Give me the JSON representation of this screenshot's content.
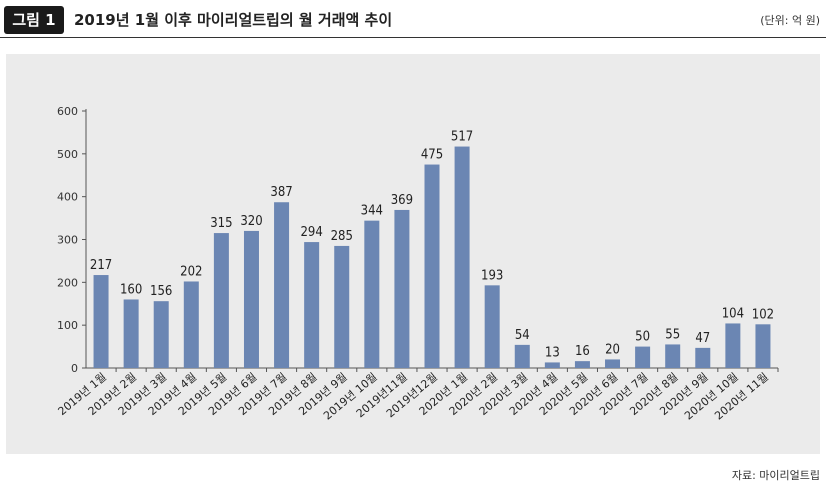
{
  "header": {
    "badge": "그림 1",
    "title": "2019년 1월 이후 마이리얼트립의 월 거래액 추이",
    "unit": "(단위: 억 원)"
  },
  "footer": {
    "source": "자료: 마이리얼트립"
  },
  "colors": {
    "bar": "#6b86b3",
    "panel": "#ebebeb",
    "badge": "#1a1a1a"
  },
  "chart_data": {
    "type": "bar",
    "title": "2019년 1월 이후 마이리얼트립의 월 거래액 추이",
    "xlabel": "",
    "ylabel": "",
    "ylim": [
      0,
      600
    ],
    "yticks": [
      0,
      100,
      200,
      300,
      400,
      500,
      600
    ],
    "grid": false,
    "categories": [
      "2019년 1월",
      "2019년 2월",
      "2019년 3월",
      "2019년 4월",
      "2019년 5월",
      "2019년 6월",
      "2019년 7월",
      "2019년 8월",
      "2019년 9월",
      "2019년 10월",
      "2019년11월",
      "2019년12월",
      "2020년 1월",
      "2020년 2월",
      "2020년 3월",
      "2020년 4월",
      "2020년 5월",
      "2020년 6월",
      "2020년 7월",
      "2020년 8월",
      "2020년 9월",
      "2020년 10월",
      "2020년 11월"
    ],
    "values": [
      217,
      160,
      156,
      202,
      315,
      320,
      387,
      294,
      285,
      344,
      369,
      475,
      517,
      193,
      54,
      13,
      16,
      20,
      50,
      55,
      47,
      104,
      102
    ]
  }
}
